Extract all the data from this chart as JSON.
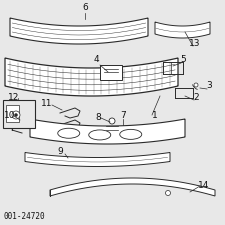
{
  "background_color": "#e8e8e8",
  "part_number_label": "001-24720",
  "line_color": "#2a2a2a",
  "text_color": "#111111",
  "font_size": 6.5,
  "label_font_size": 5.5
}
